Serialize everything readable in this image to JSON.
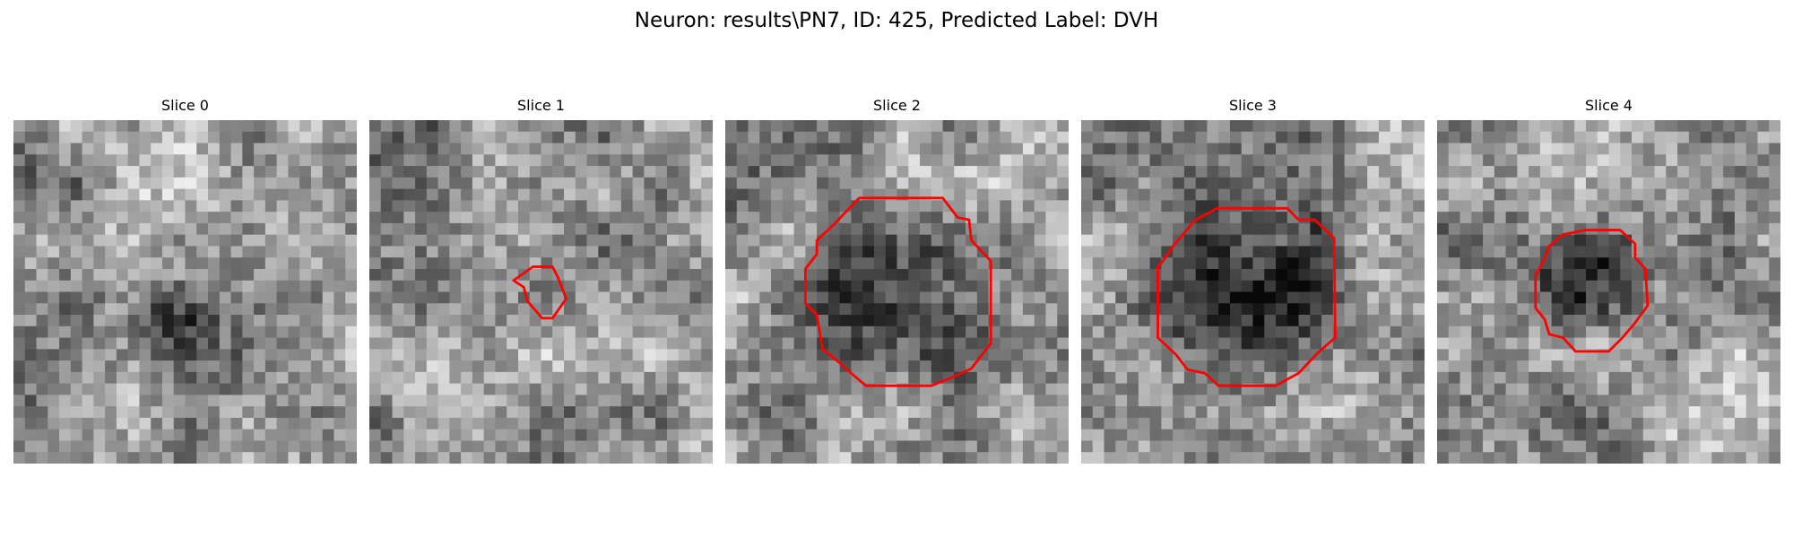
{
  "figure": {
    "title": "Neuron: results\\PN7, ID: 425, Predicted Label: DVH"
  },
  "panels": [
    {
      "title": "Slice 0"
    },
    {
      "title": "Slice 1"
    },
    {
      "title": "Slice 2"
    },
    {
      "title": "Slice 3"
    },
    {
      "title": "Slice 4"
    }
  ],
  "colors": {
    "contour": "#ff0000",
    "background": "#ffffff"
  }
}
